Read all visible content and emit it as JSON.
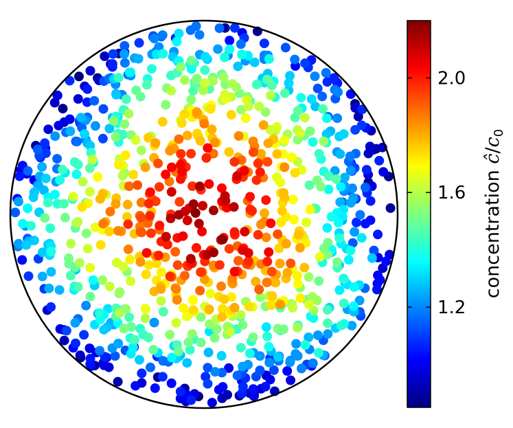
{
  "chart_data": {
    "type": "scatter",
    "title": "",
    "xlabel": "",
    "ylabel": "",
    "domain": "unit disk",
    "axes_visible": false,
    "grid": false,
    "colorbar": {
      "label_text": "concentration ",
      "label_math_c": "ĉ",
      "label_math_slash": "/",
      "label_math_c0": "c",
      "label_math_sub": "0",
      "range": [
        0.85,
        2.2
      ],
      "ticks": [
        1.2,
        1.6,
        2.0
      ],
      "tick_labels": [
        "1.2",
        "1.6",
        "2.0"
      ],
      "colormap": "jet",
      "jet_stops": [
        "#00007f",
        "#0000ff",
        "#007fff",
        "#00ffff",
        "#7fff7f",
        "#ffff00",
        "#ff7f00",
        "#ff0000",
        "#7f0000"
      ]
    },
    "point_count": 1000,
    "distribution": "roughly uniform over the disk; value decreases with radius from ~2.2 at center to ~0.9 at edge",
    "value_model": {
      "center_value": 2.1,
      "edge_value": 0.95,
      "noise": 0.08
    }
  }
}
